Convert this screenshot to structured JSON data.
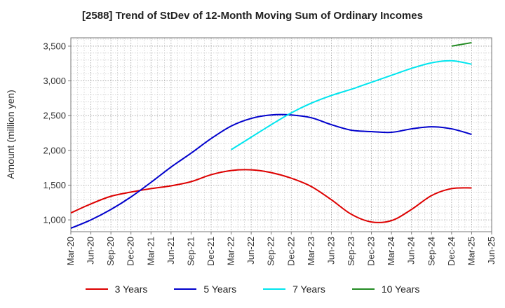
{
  "chart_data": {
    "type": "line",
    "title": "[2588]  Trend of StDev of 12-Month Moving Sum of Ordinary Incomes",
    "xlabel": "",
    "ylabel": "Amount (million yen)",
    "x_ticks": [
      "Mar-20",
      "Jun-20",
      "Sep-20",
      "Dec-20",
      "Mar-21",
      "Jun-21",
      "Sep-21",
      "Dec-21",
      "Mar-22",
      "Jun-22",
      "Sep-22",
      "Dec-22",
      "Mar-23",
      "Jun-23",
      "Sep-23",
      "Dec-23",
      "Mar-24",
      "Jun-24",
      "Sep-24",
      "Dec-24",
      "Mar-25",
      "Jun-25"
    ],
    "y_ticks": [
      "1,000",
      "1,500",
      "2,000",
      "2,500",
      "3,000",
      "3,500"
    ],
    "y_tick_values": [
      1000,
      1500,
      2000,
      2500,
      3000,
      3500
    ],
    "ylim": [
      830,
      3620
    ],
    "grid": true,
    "legend_position": "bottom",
    "series": [
      {
        "name": "3 Years",
        "color": "#dd0000",
        "x": [
          "Mar-20",
          "Jun-20",
          "Sep-20",
          "Dec-20",
          "Mar-21",
          "Jun-21",
          "Sep-21",
          "Dec-21",
          "Mar-22",
          "Jun-22",
          "Sep-22",
          "Dec-22",
          "Mar-23",
          "Jun-23",
          "Sep-23",
          "Dec-23",
          "Mar-24",
          "Jun-24",
          "Sep-24",
          "Dec-24",
          "Mar-25"
        ],
        "values": [
          1100,
          1230,
          1340,
          1400,
          1450,
          1490,
          1550,
          1650,
          1710,
          1720,
          1680,
          1600,
          1480,
          1290,
          1080,
          970,
          990,
          1150,
          1350,
          1450,
          1460
        ]
      },
      {
        "name": "5 Years",
        "color": "#0000cc",
        "x": [
          "Mar-20",
          "Jun-20",
          "Sep-20",
          "Dec-20",
          "Mar-21",
          "Jun-21",
          "Sep-21",
          "Dec-21",
          "Mar-22",
          "Jun-22",
          "Sep-22",
          "Dec-22",
          "Mar-23",
          "Jun-23",
          "Sep-23",
          "Dec-23",
          "Mar-24",
          "Jun-24",
          "Sep-24",
          "Dec-24",
          "Mar-25"
        ],
        "values": [
          880,
          1000,
          1150,
          1330,
          1540,
          1760,
          1960,
          2170,
          2350,
          2460,
          2510,
          2510,
          2470,
          2370,
          2290,
          2270,
          2260,
          2310,
          2340,
          2310,
          2230
        ]
      },
      {
        "name": "7 Years",
        "color": "#00e5ee",
        "x": [
          "Mar-22",
          "Jun-22",
          "Sep-22",
          "Dec-22",
          "Mar-23",
          "Jun-23",
          "Sep-23",
          "Dec-23",
          "Mar-24",
          "Jun-24",
          "Sep-24",
          "Dec-24",
          "Mar-25"
        ],
        "values": [
          2010,
          2190,
          2370,
          2540,
          2680,
          2790,
          2880,
          2980,
          3080,
          3180,
          3260,
          3290,
          3240
        ]
      },
      {
        "name": "10 Years",
        "color": "#228b22",
        "x": [
          "Dec-24",
          "Mar-25"
        ],
        "values": [
          3500,
          3550
        ]
      }
    ]
  }
}
